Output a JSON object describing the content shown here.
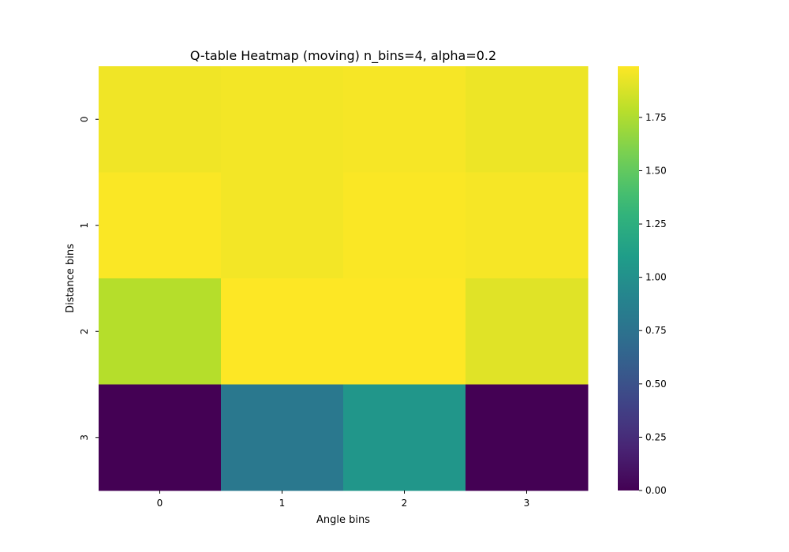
{
  "chart_data": {
    "type": "heatmap",
    "title": "Q-table Heatmap (moving) n_bins=4, alpha=0.2",
    "xlabel": "Angle bins",
    "ylabel": "Distance bins",
    "x_categories": [
      "0",
      "1",
      "2",
      "3"
    ],
    "y_categories": [
      "0",
      "1",
      "2",
      "3"
    ],
    "values": [
      [
        1.95,
        1.96,
        1.97,
        1.94
      ],
      [
        1.98,
        1.96,
        1.98,
        1.97
      ],
      [
        1.77,
        1.99,
        1.99,
        1.9
      ],
      [
        0.0,
        0.8,
        1.04,
        0.0
      ]
    ],
    "colormap": "viridis",
    "vmin": 0.0,
    "vmax": 1.99,
    "colorbar_ticks": [
      "0.00",
      "0.25",
      "0.50",
      "0.75",
      "1.00",
      "1.25",
      "1.50",
      "1.75"
    ],
    "grid": false
  }
}
